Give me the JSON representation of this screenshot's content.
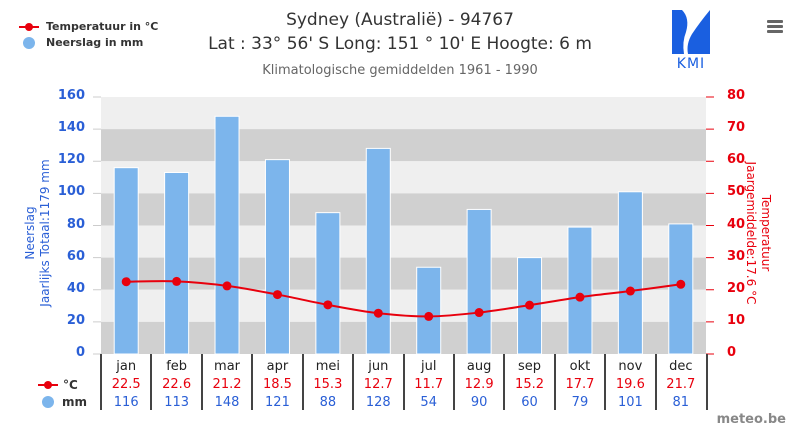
{
  "header": {
    "title": "Sydney (Australië) - 94767",
    "coords": "Lat : 33° 56' S Long: 151 ° 10' E Hoogte: 6 m",
    "subtitle": "Klimatologische gemiddelden 1961 - 1990",
    "logo_text": "KMI",
    "menu_icon": "hamburger-menu-icon"
  },
  "legend": {
    "temperature": "Temperatuur in °C",
    "precipitation": "Neerslag in mm"
  },
  "axes": {
    "left_title_1": "Neerslag",
    "left_title_2": "Jaarlijks Totaal:1179 mm",
    "right_title_1": "Temperatuur",
    "right_title_2": "Jaargemiddelde:17.6 °C",
    "left_ticks": [
      "160",
      "140",
      "120",
      "100",
      "80",
      "60",
      "40",
      "20",
      "0"
    ],
    "right_ticks": [
      "80",
      "70",
      "60",
      "50",
      "40",
      "30",
      "20",
      "10",
      "0"
    ]
  },
  "table": {
    "temp_label": "°C",
    "prec_label": "mm"
  },
  "footer": {
    "brand": "meteo.be"
  },
  "colors": {
    "precip": "#7cb5ec",
    "temp": "#e8000d",
    "left_axis": "#2a5fd6",
    "band_light": "#efefef",
    "band_dark": "#d0d0d0"
  },
  "chart_data": {
    "type": "bar",
    "title": "Sydney (Australië) - 94767",
    "subtitle": "Klimatologische gemiddelden 1961 - 1990",
    "categories": [
      "jan",
      "feb",
      "mar",
      "apr",
      "mei",
      "jun",
      "jul",
      "aug",
      "sep",
      "okt",
      "nov",
      "dec"
    ],
    "series": [
      {
        "name": "Neerslag in mm",
        "type": "bar",
        "axis": "left",
        "values": [
          116,
          113,
          148,
          121,
          88,
          128,
          54,
          90,
          60,
          79,
          101,
          81
        ]
      },
      {
        "name": "Temperatuur in °C",
        "type": "line",
        "axis": "right",
        "values": [
          22.5,
          22.6,
          21.2,
          18.5,
          15.3,
          12.7,
          11.7,
          12.9,
          15.2,
          17.7,
          19.6,
          21.7
        ]
      }
    ],
    "ylabel": "Neerslag / Jaarlijks Totaal:1179 mm",
    "y2label": "Temperatuur / Jaargemiddelde:17.6 °C",
    "ylim": [
      0,
      160
    ],
    "y2lim": [
      0,
      80
    ],
    "grid": true,
    "legend_position": "top-left"
  }
}
